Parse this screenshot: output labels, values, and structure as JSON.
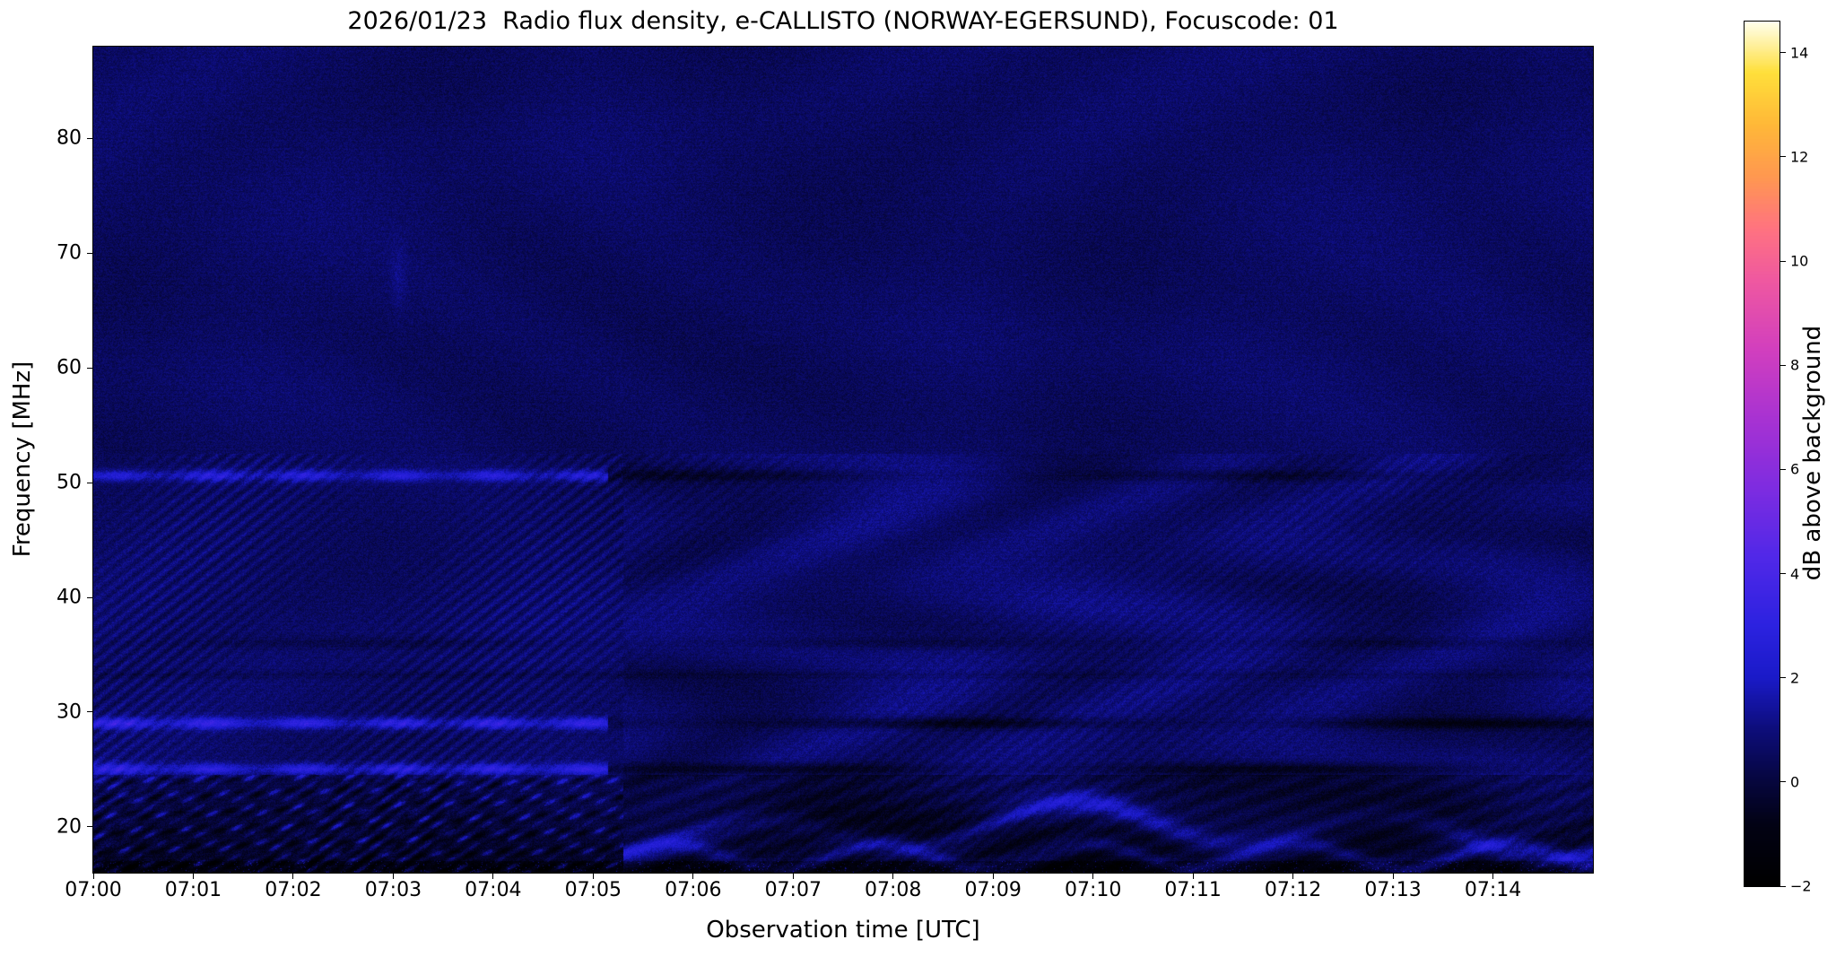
{
  "chart_data": {
    "type": "heatmap",
    "title": "2026/01/23  Radio flux density, e-CALLISTO (NORWAY-EGERSUND), Focuscode: 01",
    "xlabel": "Observation time [UTC]",
    "ylabel": "Frequency [MHz]",
    "x_ticks": [
      "07:00",
      "07:01",
      "07:02",
      "07:03",
      "07:04",
      "07:05",
      "07:06",
      "07:07",
      "07:08",
      "07:09",
      "07:10",
      "07:11",
      "07:12",
      "07:13",
      "07:14"
    ],
    "x_span_minutes": 15,
    "y_ticks": [
      20,
      30,
      40,
      50,
      60,
      70,
      80
    ],
    "freq_min": 16,
    "freq_max": 88,
    "grid": false,
    "colorbar": {
      "label": "dB above background",
      "vmin": -2,
      "vmax": 14.6,
      "ticks": [
        14,
        12,
        10,
        8,
        6,
        4,
        2,
        0,
        -2
      ],
      "colormap": "gnuplot2",
      "stops": [
        [
          0.0,
          "#000000"
        ],
        [
          0.07,
          "#020214"
        ],
        [
          0.12,
          "#06063e"
        ],
        [
          0.18,
          "#0d0d7a"
        ],
        [
          0.24,
          "#1a1ac8"
        ],
        [
          0.3,
          "#2c22e0"
        ],
        [
          0.38,
          "#5128e8"
        ],
        [
          0.46,
          "#7e2ce0"
        ],
        [
          0.54,
          "#a832d2"
        ],
        [
          0.62,
          "#d23fbe"
        ],
        [
          0.7,
          "#ef58a0"
        ],
        [
          0.76,
          "#ff7380"
        ],
        [
          0.82,
          "#ff9850"
        ],
        [
          0.88,
          "#ffb838"
        ],
        [
          0.94,
          "#ffdf3a"
        ],
        [
          1.0,
          "#fffff0"
        ]
      ]
    },
    "background": {
      "mean_db": 0.55,
      "noise_db": 1.0
    },
    "rfi_lines": [
      {
        "freq_mhz": 50.6,
        "bright_until_min": 5.15,
        "bright_db": 2.1,
        "after_db": -0.7
      },
      {
        "freq_mhz": 36.0,
        "bright_until_min": 0.0,
        "bright_db": 0.0,
        "after_db": -0.5
      },
      {
        "freq_mhz": 29.0,
        "bright_until_min": 5.15,
        "bright_db": 2.6,
        "after_db": -1.2
      },
      {
        "freq_mhz": 25.0,
        "bright_until_min": 5.15,
        "bright_db": 2.3,
        "after_db": -1.2
      }
    ],
    "interference": {
      "diagonal_texture_below_mhz": 52.5,
      "diagonal_strong_until_min": 5.3,
      "ionospheric_band_below_mhz": 24.5,
      "wave_centers_mhz": [
        19.6,
        17.4
      ],
      "vertical_smudge": {
        "time_min": 3.05,
        "freq_mhz": 68,
        "db": 0.5
      }
    }
  }
}
